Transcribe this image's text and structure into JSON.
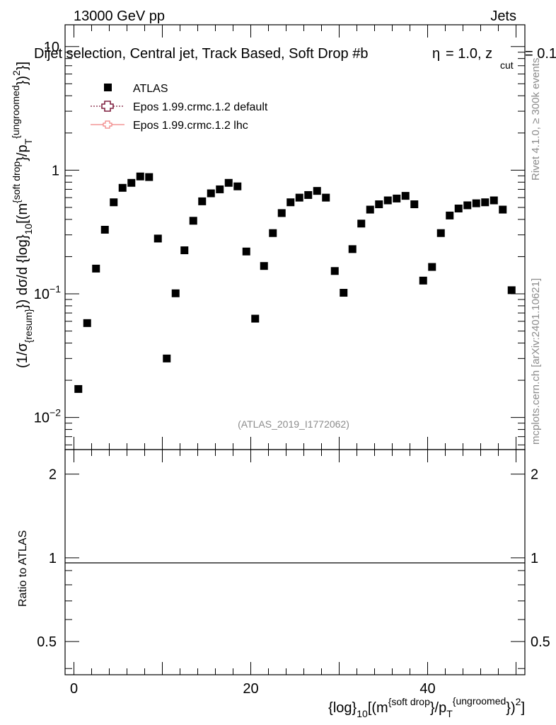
{
  "header": {
    "energy_label": "13000 GeV pp",
    "process_label": "Jets",
    "plot_title": "Dijet selection, Central jet, Track Based, Soft Drop #b",
    "title_beta": "= 1.0, z",
    "title_zcut_sub": "cut",
    "title_zcut_val": "= 0.1"
  },
  "side_labels": {
    "rivet": "Rivet 4.1.0, ≥ 300k events",
    "mcplots": "mcplots.cern.ch [arXiv:2401.10621]"
  },
  "watermark": "(ATLAS_2019_I1772062)",
  "legend": [
    {
      "label": "ATLAS",
      "marker": "square",
      "color": "#000000"
    },
    {
      "label": "Epos 1.99.crmc.1.2 default",
      "marker": "open-cross",
      "color": "#7f1f3f"
    },
    {
      "label": "Epos 1.99.crmc.1.2 lhc",
      "marker": "cross-line",
      "color": "#f08080"
    }
  ],
  "axes": {
    "y_main": {
      "pre": "(1/σ",
      "sub1": "{resum}",
      "mid": "}) dσ/d {log}",
      "sub2": "10",
      "post": "[(m",
      "sup1": "{soft drop",
      "post2": "}/p",
      "sub3": "T",
      "sup2": "{ungroomed",
      "post3": "})",
      "sup3": "2",
      "end": "}]"
    },
    "y_ratio_label": "Ratio to ATLAS",
    "x": {
      "pre": "{log}",
      "sub1": "10",
      "mid": "[(m",
      "sup1": "{soft drop",
      "mid2": "}/p",
      "sub2": "T",
      "sup2": "{ungroomed",
      "post": "})",
      "sup3": "2",
      "end": "]"
    },
    "x_ticks": [
      "0",
      "20",
      "40"
    ],
    "y_main_ticks": [
      {
        "base": "10",
        "exp": "",
        "value": 10
      },
      {
        "base": "1",
        "exp": "",
        "value": 1
      },
      {
        "base": "10",
        "exp": "−1",
        "value": 0.1
      },
      {
        "base": "10",
        "exp": "−2",
        "value": 0.01
      }
    ],
    "y_ratio_ticks": [
      "2",
      "1",
      "0.5"
    ]
  },
  "chart_data": {
    "type": "scatter",
    "title": "Dijet selection, Central jet, Track Based, Soft Drop #b = 1.0, z_cut = 0.1",
    "xlim": [
      -1,
      51
    ],
    "ylim": [
      0.0055,
      15
    ],
    "yscale": "log",
    "ratio_ylim": [
      0.38,
      2.45
    ],
    "series": [
      {
        "name": "ATLAS",
        "x": [
          0.5,
          1.5,
          2.5,
          3.5,
          4.5,
          5.5,
          6.5,
          7.5,
          8.5,
          9.5,
          10.5,
          11.5,
          12.5,
          13.5,
          14.5,
          15.5,
          16.5,
          17.5,
          18.5,
          19.5,
          20.5,
          21.5,
          22.5,
          23.5,
          24.5,
          25.5,
          26.5,
          27.5,
          28.5,
          29.5,
          30.5,
          31.5,
          32.5,
          33.5,
          34.5,
          35.5,
          36.5,
          37.5,
          38.5,
          39.5,
          40.5,
          41.5,
          42.5,
          43.5,
          44.5,
          45.5,
          46.5,
          47.5,
          48.5,
          49.5
        ],
        "y": [
          0.017,
          0.058,
          0.16,
          0.33,
          0.55,
          0.72,
          0.79,
          0.89,
          0.88,
          0.28,
          0.03,
          0.101,
          0.225,
          0.39,
          0.56,
          0.65,
          0.7,
          0.79,
          0.74,
          0.22,
          0.063,
          0.168,
          0.31,
          0.45,
          0.55,
          0.6,
          0.63,
          0.68,
          0.6,
          0.153,
          0.102,
          0.23,
          0.37,
          0.48,
          0.53,
          0.57,
          0.59,
          0.62,
          0.53,
          0.128,
          0.165,
          0.31,
          0.43,
          0.49,
          0.52,
          0.54,
          0.55,
          0.57,
          0.48,
          0.107
        ]
      },
      {
        "name": "Epos 1.99.crmc.1.2 default",
        "x": [],
        "y": []
      },
      {
        "name": "Epos 1.99.crmc.1.2 lhc",
        "x": [],
        "y": []
      }
    ],
    "ratio_reference": 1
  }
}
